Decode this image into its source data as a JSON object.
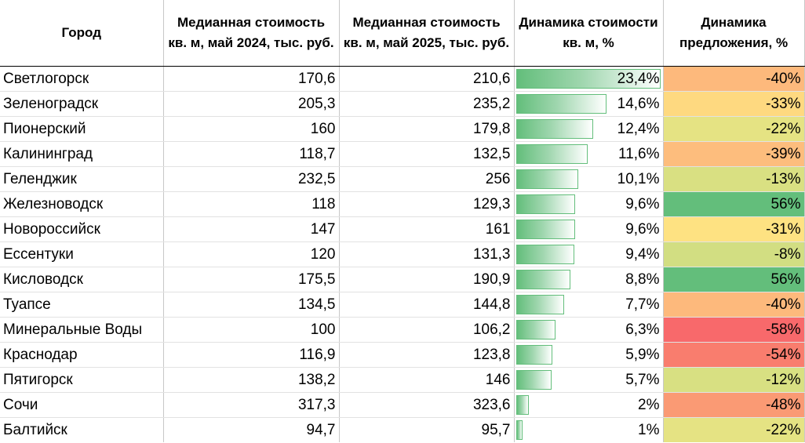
{
  "table": {
    "headers": {
      "city": "Город",
      "price_2024": "Медианная стоимость кв. м, май 2024, тыс. руб.",
      "price_2025": "Медианная стоимость кв. м, май 2025, тыс. руб.",
      "price_change": "Динамика стоимости кв. м, %",
      "offer_change": "Динамика предложения, %"
    },
    "rows": [
      {
        "city": "Светлогорск",
        "price_2024": "170,6",
        "price_2025": "210,6",
        "price_change": "23,4%",
        "price_change_value": 23.4,
        "offer_change": "-40%",
        "offer_color": "#fdb97c"
      },
      {
        "city": "Зеленоградск",
        "price_2024": "205,3",
        "price_2025": "235,2",
        "price_change": "14,6%",
        "price_change_value": 14.6,
        "offer_change": "-33%",
        "offer_color": "#fed980"
      },
      {
        "city": "Пионерский",
        "price_2024": "160",
        "price_2025": "179,8",
        "price_change": "12,4%",
        "price_change_value": 12.4,
        "offer_change": "-22%",
        "offer_color": "#e5e383"
      },
      {
        "city": "Калининград",
        "price_2024": "118,7",
        "price_2025": "132,5",
        "price_change": "11,6%",
        "price_change_value": 11.6,
        "offer_change": "-39%",
        "offer_color": "#fdbd7d"
      },
      {
        "city": "Геленджик",
        "price_2024": "232,5",
        "price_2025": "256",
        "price_change": "10,1%",
        "price_change_value": 10.1,
        "offer_change": "-13%",
        "offer_color": "#d9e082"
      },
      {
        "city": "Железноводск",
        "price_2024": "118",
        "price_2025": "129,3",
        "price_change": "9,6%",
        "price_change_value": 9.6,
        "offer_change": "56%",
        "offer_color": "#63be7b"
      },
      {
        "city": "Новороссийск",
        "price_2024": "147",
        "price_2025": "161",
        "price_change": "9,6%",
        "price_change_value": 9.6,
        "offer_change": "-31%",
        "offer_color": "#fee282"
      },
      {
        "city": "Ессентуки",
        "price_2024": "120",
        "price_2025": "131,3",
        "price_change": "9,4%",
        "price_change_value": 9.4,
        "offer_change": "-8%",
        "offer_color": "#d2de82"
      },
      {
        "city": "Кисловодск",
        "price_2024": "175,5",
        "price_2025": "190,9",
        "price_change": "8,8%",
        "price_change_value": 8.8,
        "offer_change": "56%",
        "offer_color": "#63be7b"
      },
      {
        "city": "Туапсе",
        "price_2024": "134,5",
        "price_2025": "144,8",
        "price_change": "7,7%",
        "price_change_value": 7.7,
        "offer_change": "-40%",
        "offer_color": "#fdb97c"
      },
      {
        "city": "Минеральные Воды",
        "price_2024": "100",
        "price_2025": "106,2",
        "price_change": "6,3%",
        "price_change_value": 6.3,
        "offer_change": "-58%",
        "offer_color": "#f8696b"
      },
      {
        "city": "Краснодар",
        "price_2024": "116,9",
        "price_2025": "123,8",
        "price_change": "5,9%",
        "price_change_value": 5.9,
        "offer_change": "-54%",
        "offer_color": "#f97d6e"
      },
      {
        "city": "Пятигорск",
        "price_2024": "138,2",
        "price_2025": "146",
        "price_change": "5,7%",
        "price_change_value": 5.7,
        "offer_change": "-12%",
        "offer_color": "#d8e082"
      },
      {
        "city": "Сочи",
        "price_2024": "317,3",
        "price_2025": "323,6",
        "price_change": "2%",
        "price_change_value": 2.0,
        "offer_change": "-48%",
        "offer_color": "#fa9a74"
      },
      {
        "city": "Балтийск",
        "price_2024": "94,7",
        "price_2025": "95,7",
        "price_change": "1%",
        "price_change_value": 1.0,
        "offer_change": "-22%",
        "offer_color": "#e5e383"
      }
    ],
    "bar_max_value": 23.4
  }
}
